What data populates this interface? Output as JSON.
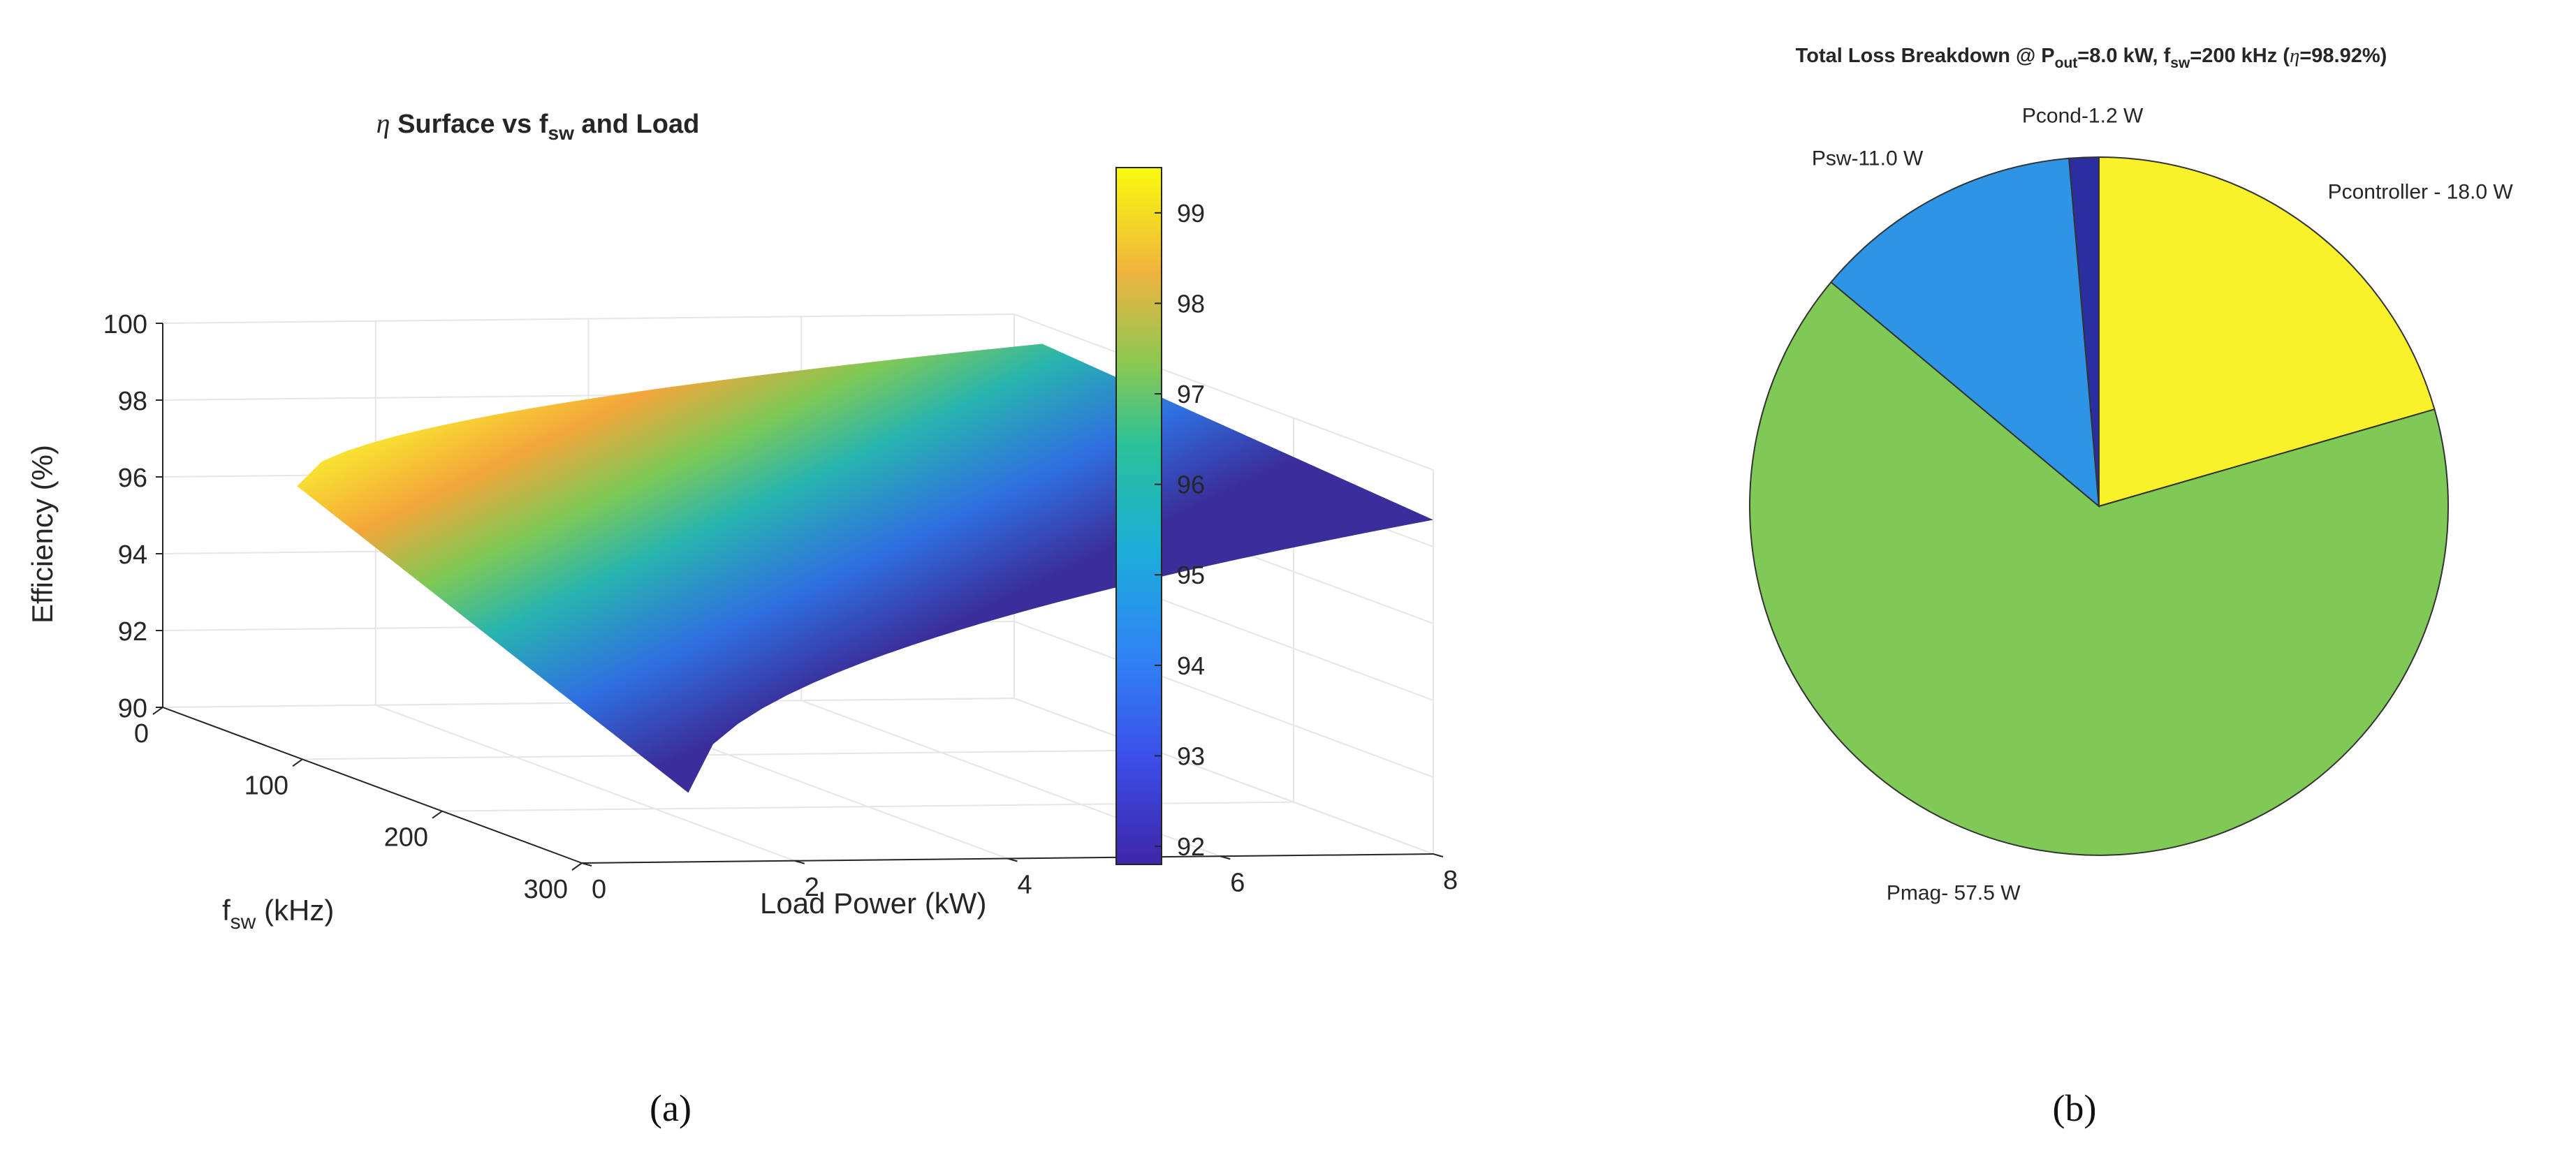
{
  "panel_labels": {
    "a": "(a)",
    "b": "(b)"
  },
  "colors": {
    "surface_low": "#3a2f9a",
    "surface_mid": "#27b4b0",
    "surface_high": "#fbe832",
    "axes": "#262626",
    "grid": "#e6e6e6"
  },
  "chart_data": [
    {
      "type": "surface",
      "title": {
        "symbol": "η",
        "text_1": " Surface vs f",
        "sub": "sw",
        "text_2": " and Load"
      },
      "xlabel": {
        "text": "f",
        "sub": "sw",
        "unit": " (kHz)"
      },
      "ylabel": "Load Power (kW)",
      "zlabel": "Efficiency (%)",
      "xlim": [
        0,
        300
      ],
      "ylim": [
        0,
        8
      ],
      "zlim": [
        90,
        100
      ],
      "xticks": [
        "0",
        "100",
        "200",
        "300"
      ],
      "yticks": [
        "0",
        "2",
        "4",
        "6",
        "8"
      ],
      "zticks": [
        "90",
        "92",
        "94",
        "96",
        "98",
        "100"
      ],
      "surface_points": {
        "fsw_khz": [
          20,
          300
        ],
        "load_kw": [
          1,
          8
        ],
        "efficiency_pct": [
          [
            96.0,
            99.5
          ],
          [
            91.8,
            98.7
          ]
        ]
      },
      "colorbar": {
        "range": [
          91.8,
          99.5
        ],
        "ticks": [
          "92",
          "93",
          "94",
          "95",
          "96",
          "97",
          "98",
          "99"
        ]
      }
    },
    {
      "type": "pie",
      "title": {
        "part1": "Total Loss Breakdown @ P",
        "sub1": "out",
        "part2": "=8.0 kW, f",
        "sub2": "sw",
        "part3": "=200 kHz  (",
        "eta": "η",
        "part4": "=98.92%)"
      },
      "slices": [
        {
          "label": "Pcontroller - 18.0 W",
          "value": 18.0,
          "color": "#f9f22b"
        },
        {
          "label": "Pmag- 57.5 W",
          "value": 57.5,
          "color": "#7fc956"
        },
        {
          "label": "Psw-11.0 W",
          "value": 11.0,
          "color": "#2e94e6"
        },
        {
          "label": "Pcond-1.2 W",
          "value": 1.2,
          "color": "#2a2e9e"
        }
      ]
    }
  ]
}
